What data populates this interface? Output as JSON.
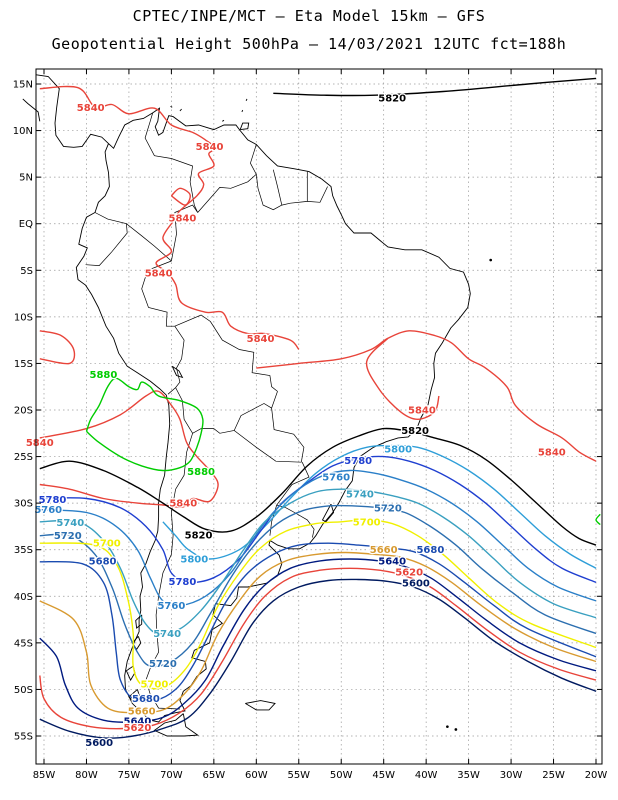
{
  "header": {
    "line1": "CPTEC/INPE/MCT –  Eta Model 15km – GFS",
    "line2": "Geopotential Height 500hPa – 14/03/2021 12UTC fct=188h"
  },
  "map": {
    "lat_labels": [
      "15N",
      "10N",
      "5N",
      "EQ",
      "5S",
      "10S",
      "15S",
      "20S",
      "25S",
      "30S",
      "35S",
      "40S",
      "45S",
      "50S",
      "55S"
    ],
    "lon_labels": [
      "85W",
      "80W",
      "75W",
      "70W",
      "65W",
      "60W",
      "55W",
      "50W",
      "45W",
      "40W",
      "35W",
      "30W",
      "25W",
      "20W"
    ],
    "grid": true,
    "colors": {
      "5880": "#00cc00",
      "5840": "#e8443a",
      "5820": "#000000",
      "5800": "#2e9ed8",
      "5780": "#1f3fd0",
      "5760": "#2a7fc8",
      "5740": "#3aa0c0",
      "5720": "#2c6fb0",
      "5700": "#f0f000",
      "5680": "#1a4bb0",
      "5660": "#d89a30",
      "5640": "#001a80",
      "5620": "#e8443a",
      "5600": "#001a60"
    },
    "contour_labels": [
      {
        "text": "5820",
        "level": "5820",
        "lon": -44,
        "lat": 13.5
      },
      {
        "text": "5840",
        "level": "5840",
        "lon": -79.5,
        "lat": 12.5
      },
      {
        "text": "5840",
        "level": "5840",
        "lon": -65.5,
        "lat": 8.3
      },
      {
        "text": "5840",
        "level": "5840",
        "lon": -68.7,
        "lat": 0.6
      },
      {
        "text": "5840",
        "level": "5840",
        "lon": -71.5,
        "lat": -5.3
      },
      {
        "text": "5840",
        "level": "5840",
        "lon": -59.5,
        "lat": -12.3
      },
      {
        "text": "5840",
        "level": "5840",
        "lon": -40.5,
        "lat": -20.0
      },
      {
        "text": "5840",
        "level": "5840",
        "lon": -25.2,
        "lat": -24.5
      },
      {
        "text": "5840",
        "level": "5840",
        "lon": -85.5,
        "lat": -23.5
      },
      {
        "text": "5840",
        "level": "5840",
        "lon": -68.6,
        "lat": -30.0
      },
      {
        "text": "5880",
        "level": "5880",
        "lon": -78.0,
        "lat": -16.2
      },
      {
        "text": "5880",
        "level": "5880",
        "lon": -66.5,
        "lat": -26.6
      },
      {
        "text": "5820",
        "level": "5820",
        "lon": -41.3,
        "lat": -22.2
      },
      {
        "text": "5820",
        "level": "5820",
        "lon": -66.8,
        "lat": -33.4
      },
      {
        "text": "5800",
        "level": "5800",
        "lon": -43.3,
        "lat": -24.2
      },
      {
        "text": "5800",
        "level": "5800",
        "lon": -67.3,
        "lat": -36.0
      },
      {
        "text": "5780",
        "level": "5780",
        "lon": -48.0,
        "lat": -25.4
      },
      {
        "text": "5780",
        "level": "5780",
        "lon": -84.0,
        "lat": -29.6
      },
      {
        "text": "5780",
        "level": "5780",
        "lon": -68.7,
        "lat": -38.4
      },
      {
        "text": "5760",
        "level": "5760",
        "lon": -50.6,
        "lat": -27.2
      },
      {
        "text": "5760",
        "level": "5760",
        "lon": -84.5,
        "lat": -30.7
      },
      {
        "text": "5760",
        "level": "5760",
        "lon": -70.0,
        "lat": -41.0
      },
      {
        "text": "5740",
        "level": "5740",
        "lon": -47.8,
        "lat": -29.0
      },
      {
        "text": "5740",
        "level": "5740",
        "lon": -81.9,
        "lat": -32.1
      },
      {
        "text": "5740",
        "level": "5740",
        "lon": -70.5,
        "lat": -44.0
      },
      {
        "text": "5720",
        "level": "5720",
        "lon": -44.5,
        "lat": -30.5
      },
      {
        "text": "5720",
        "level": "5720",
        "lon": -82.2,
        "lat": -33.5
      },
      {
        "text": "5720",
        "level": "5720",
        "lon": -71.0,
        "lat": -47.2
      },
      {
        "text": "5700",
        "level": "5700",
        "lon": -47.0,
        "lat": -32.0
      },
      {
        "text": "5700",
        "level": "5700",
        "lon": -77.6,
        "lat": -34.3
      },
      {
        "text": "5700",
        "level": "5700",
        "lon": -72.0,
        "lat": -49.4
      },
      {
        "text": "5680",
        "level": "5680",
        "lon": -78.1,
        "lat": -36.2
      },
      {
        "text": "5680",
        "level": "5680",
        "lon": -39.5,
        "lat": -35.0
      },
      {
        "text": "5680",
        "level": "5680",
        "lon": -73.0,
        "lat": -51.0
      },
      {
        "text": "5660",
        "level": "5660",
        "lon": -45.0,
        "lat": -35.0
      },
      {
        "text": "5660",
        "level": "5660",
        "lon": -73.5,
        "lat": -52.3
      },
      {
        "text": "5640",
        "level": "5640",
        "lon": -44.0,
        "lat": -36.2
      },
      {
        "text": "5640",
        "level": "5640",
        "lon": -74.0,
        "lat": -53.4
      },
      {
        "text": "5620",
        "level": "5620",
        "lon": -42.0,
        "lat": -37.4
      },
      {
        "text": "5620",
        "level": "5620",
        "lon": -74.0,
        "lat": -54.1
      },
      {
        "text": "5600",
        "level": "5600",
        "lon": -41.2,
        "lat": -38.6
      },
      {
        "text": "5600",
        "level": "5600",
        "lon": -78.5,
        "lat": -55.7
      }
    ]
  }
}
